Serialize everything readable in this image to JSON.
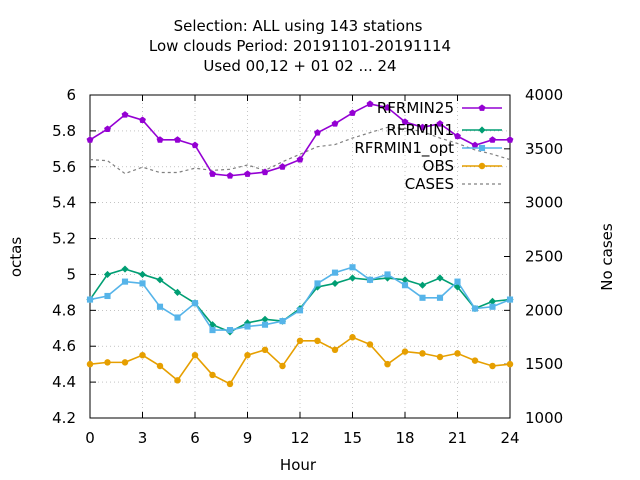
{
  "chart_data": {
    "type": "line",
    "title": [
      "Selection: ALL using   143 stations",
      "Low clouds   Period: 20191101-20191114",
      "Used  00,12  + 01 02 ... 24"
    ],
    "xlabel": "Hour",
    "ylabel": "octas",
    "y2label": "No cases",
    "xlim": [
      0,
      24
    ],
    "ylim": [
      4.2,
      6.0
    ],
    "y2lim": [
      1000,
      4000
    ],
    "xticks": [
      "0",
      "3",
      "6",
      "9",
      "12",
      "15",
      "18",
      "21",
      "24"
    ],
    "yticks": [
      "4.2",
      "4.4",
      "4.6",
      "4.8",
      "5",
      "5.2",
      "5.4",
      "5.6",
      "5.8",
      "6"
    ],
    "y2ticks": [
      "1000",
      "1500",
      "2000",
      "2500",
      "3000",
      "3500",
      "4000"
    ],
    "grid": true,
    "legend_position": "top-right",
    "x": [
      0,
      1,
      2,
      3,
      4,
      5,
      6,
      7,
      8,
      9,
      10,
      11,
      12,
      13,
      14,
      15,
      16,
      17,
      18,
      19,
      20,
      21,
      22,
      23,
      24
    ],
    "series": [
      {
        "name": "RFRMIN25",
        "color": "#9400d3",
        "marker": "pentagon",
        "axis": "y1",
        "values": [
          5.75,
          5.81,
          5.89,
          5.86,
          5.75,
          5.75,
          5.72,
          5.56,
          5.55,
          5.56,
          5.57,
          5.6,
          5.64,
          5.79,
          5.84,
          5.9,
          5.95,
          5.93,
          5.85,
          5.82,
          5.84,
          5.77,
          5.72,
          5.75,
          5.75
        ]
      },
      {
        "name": "RFRMIN1",
        "color": "#009e73",
        "marker": "diamond",
        "axis": "y1",
        "values": [
          4.86,
          5.0,
          5.03,
          5.0,
          4.97,
          4.9,
          4.84,
          4.72,
          4.68,
          4.73,
          4.75,
          4.74,
          4.81,
          4.93,
          4.95,
          4.98,
          4.97,
          4.98,
          4.97,
          4.94,
          4.98,
          4.93,
          4.81,
          4.85,
          4.86
        ]
      },
      {
        "name": "RFRMIN1_opt",
        "color": "#56b4e9",
        "marker": "square",
        "axis": "y1",
        "values": [
          4.86,
          4.88,
          4.96,
          4.95,
          4.82,
          4.76,
          4.84,
          4.69,
          4.69,
          4.71,
          4.72,
          4.74,
          4.8,
          4.95,
          5.01,
          5.04,
          4.97,
          5.0,
          4.94,
          4.87,
          4.87,
          4.96,
          4.81,
          4.82,
          4.86
        ]
      },
      {
        "name": "OBS",
        "color": "#e69f00",
        "marker": "circle",
        "axis": "y1",
        "values": [
          4.5,
          4.51,
          4.51,
          4.55,
          4.49,
          4.41,
          4.55,
          4.44,
          4.39,
          4.55,
          4.58,
          4.49,
          4.63,
          4.63,
          4.58,
          4.65,
          4.61,
          4.5,
          4.57,
          4.56,
          4.54,
          4.56,
          4.52,
          4.49,
          4.5
        ]
      },
      {
        "name": "CASES",
        "color": "#808080",
        "marker": "none",
        "dashed": true,
        "axis": "y2",
        "values": [
          3400,
          3390,
          3270,
          3330,
          3280,
          3280,
          3320,
          3300,
          3310,
          3350,
          3300,
          3380,
          3450,
          3520,
          3540,
          3600,
          3650,
          3700,
          3690,
          3660,
          3600,
          3550,
          3490,
          3450,
          3400
        ]
      }
    ],
    "legend": [
      "RFRMIN25",
      "RFRMIN1",
      "RFRMIN1_opt",
      "OBS",
      "CASES"
    ]
  }
}
